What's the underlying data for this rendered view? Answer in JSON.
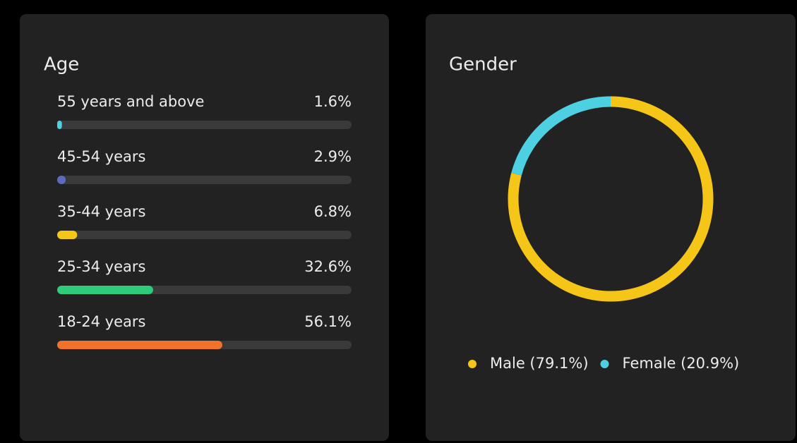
{
  "chart_data": [
    {
      "type": "hbar",
      "title": "Age",
      "categories": [
        "55 years and above",
        "45-54 years",
        "35-44 years",
        "25-34 years",
        "18-24 years"
      ],
      "values": [
        1.6,
        2.9,
        6.8,
        32.6,
        56.1
      ],
      "value_labels": [
        "1.6%",
        "2.9%",
        "6.8%",
        "32.6%",
        "56.1%"
      ],
      "colors": [
        "#4dd0e1",
        "#5c6bc0",
        "#f5c518",
        "#2ecc7a",
        "#f0722b"
      ],
      "xlim": [
        0,
        100
      ]
    },
    {
      "type": "donut",
      "title": "Gender",
      "categories": [
        "Male (79.1%)",
        "Female (20.9%)"
      ],
      "values": [
        79.1,
        20.9
      ],
      "colors": [
        "#f5c518",
        "#4dd0e1"
      ]
    }
  ]
}
